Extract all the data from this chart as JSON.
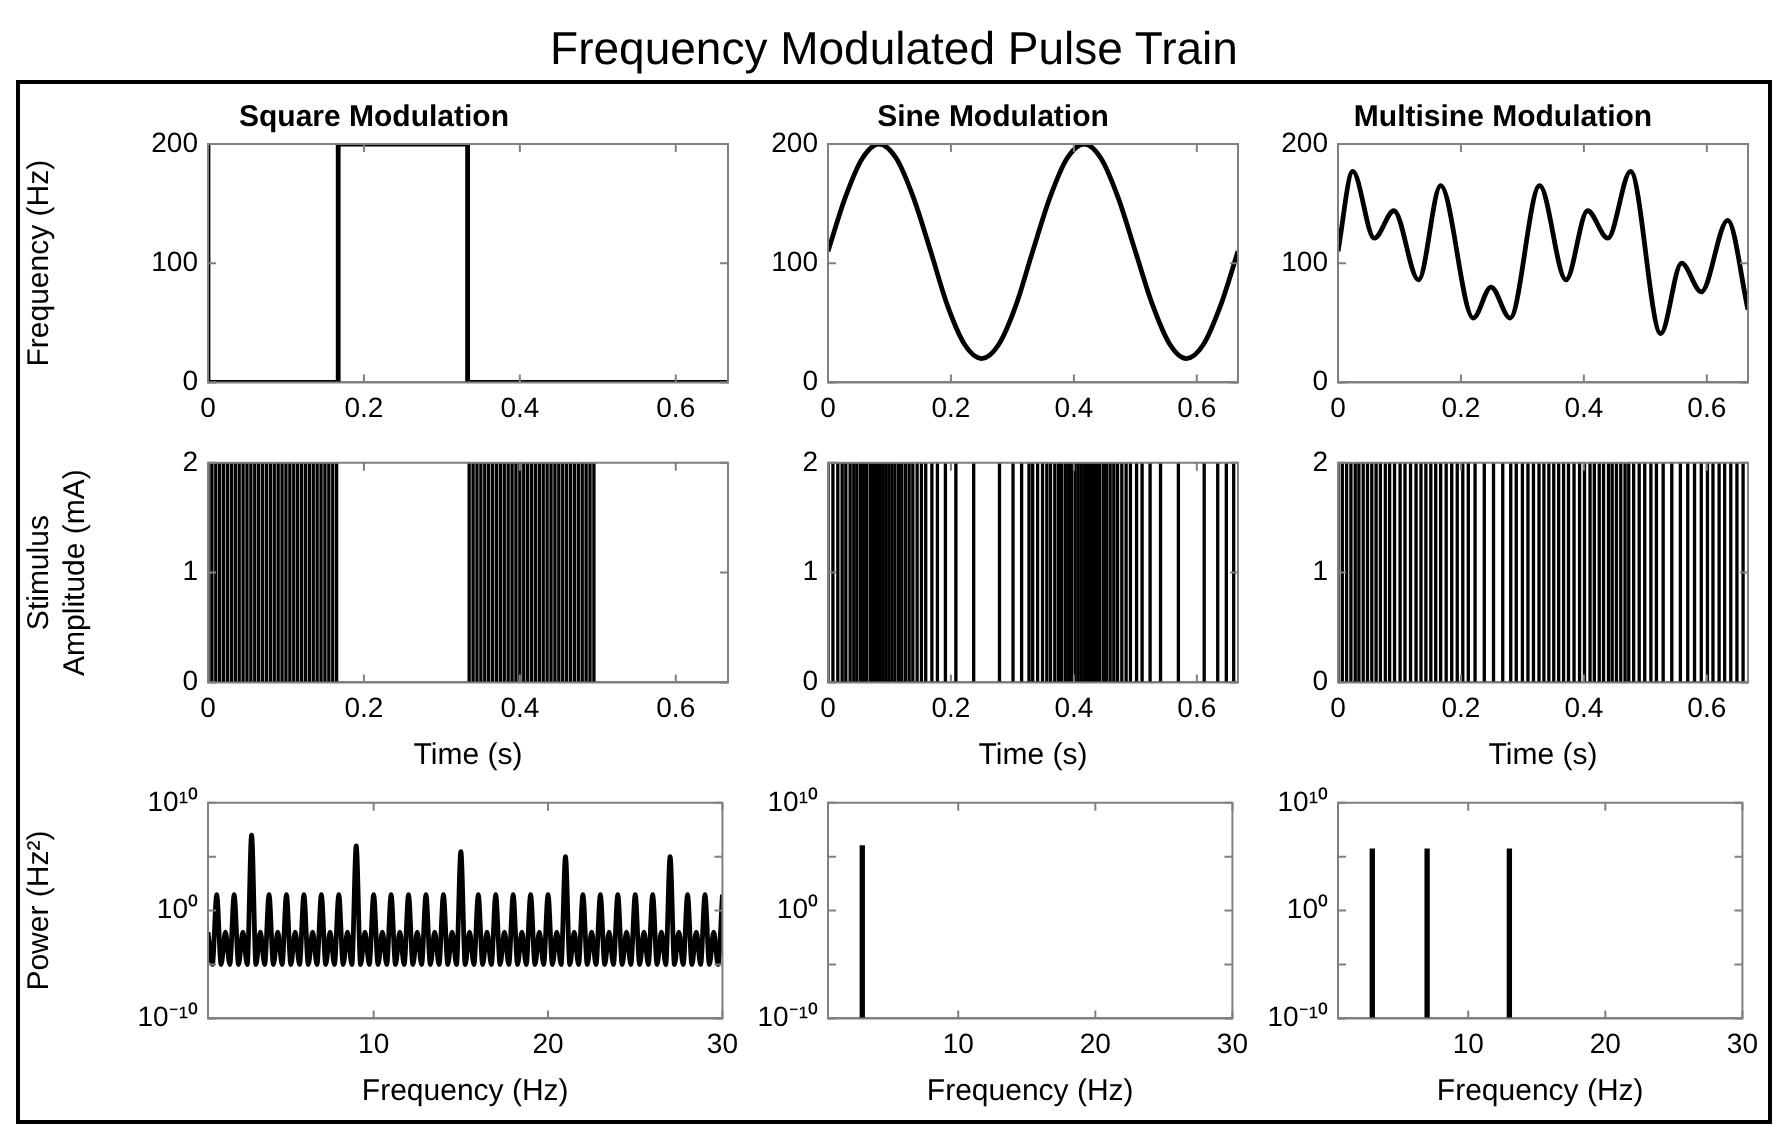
{
  "chart_data": [
    {
      "type": "step",
      "title": "Square Modulation",
      "ylabel": "Frequency (Hz)",
      "annotations": [
        "Frequency Modulated Pulse Train"
      ],
      "xlim": [
        0,
        0.667
      ],
      "xticks": [
        0,
        0.2,
        0.4,
        0.6
      ],
      "ylim": [
        0,
        200
      ],
      "yticks": [
        0,
        100,
        200
      ],
      "grid": false,
      "marker": "none",
      "series": [
        {
          "color": "#000000",
          "x": [
            0,
            0.167,
            0.333,
            0.5,
            0.667
          ],
          "values": [
            200,
            0,
            200,
            0,
            0
          ]
        }
      ]
    },
    {
      "type": "line",
      "title": "Sine Modulation",
      "xlim": [
        0,
        0.667
      ],
      "xticks": [
        0,
        0.2,
        0.4,
        0.6
      ],
      "ylim": [
        0,
        200
      ],
      "yticks": [
        0,
        100,
        200
      ],
      "grid": false,
      "marker": "none",
      "series": [
        {
          "color": "#000000",
          "x": [
            0,
            0.028,
            0.056,
            0.083,
            0.111,
            0.139,
            0.167,
            0.194,
            0.222,
            0.25,
            0.278,
            0.306,
            0.333,
            0.361,
            0.389,
            0.417,
            0.444,
            0.472,
            0.5,
            0.528,
            0.556,
            0.583,
            0.611,
            0.639,
            0.667
          ],
          "values": [
            110,
            155,
            188,
            200,
            188,
            155,
            110,
            65,
            32,
            20,
            32,
            65,
            110,
            155,
            188,
            200,
            188,
            155,
            110,
            65,
            32,
            20,
            32,
            65,
            110
          ]
        }
      ]
    },
    {
      "type": "line",
      "title": "Multisine Modulation",
      "xlim": [
        0,
        0.667
      ],
      "xticks": [
        0,
        0.2,
        0.4,
        0.6
      ],
      "ylim": [
        0,
        200
      ],
      "yticks": [
        0,
        100,
        200
      ],
      "grid": false,
      "marker": "none",
      "series": [
        {
          "color": "#000000",
          "x": [
            0,
            0.024,
            0.059,
            0.091,
            0.131,
            0.167,
            0.22,
            0.249,
            0.28,
            0.328,
            0.371,
            0.406,
            0.439,
            0.476,
            0.525,
            0.559,
            0.591,
            0.634,
            0.667
          ],
          "values": [
            110,
            177,
            121,
            144,
            86,
            165,
            54,
            80,
            54,
            165,
            86,
            144,
            121,
            177,
            41,
            100,
            76,
            136,
            61
          ]
        }
      ]
    },
    {
      "type": "bar",
      "ylabel": "Stimulus\nAmplitude (mA)",
      "xlabel": "Time (s)",
      "xlim": [
        0,
        0.667
      ],
      "xticks": [
        0,
        0.2,
        0.4,
        0.6
      ],
      "ylim": [
        0,
        2
      ],
      "yticks": [
        0,
        1,
        2
      ],
      "grid": false,
      "series": [
        {
          "color": "#000000",
          "x": [
            0,
            0.005,
            0.01,
            0.015,
            0.02,
            0.025,
            0.03,
            0.035,
            0.04,
            0.045,
            0.05,
            0.055,
            0.06,
            0.065,
            0.07,
            0.075,
            0.08,
            0.085,
            0.09,
            0.095,
            0.1,
            0.105,
            0.11,
            0.115,
            0.12,
            0.125,
            0.13,
            0.135,
            0.14,
            0.145,
            0.15,
            0.155,
            0.16,
            0.165,
            0.335,
            0.34,
            0.345,
            0.35,
            0.355,
            0.36,
            0.365,
            0.37,
            0.375,
            0.38,
            0.385,
            0.39,
            0.395,
            0.4,
            0.405,
            0.41,
            0.415,
            0.42,
            0.425,
            0.43,
            0.435,
            0.44,
            0.445,
            0.45,
            0.455,
            0.46,
            0.465,
            0.47,
            0.475,
            0.48,
            0.485,
            0.49,
            0.495
          ],
          "values": [
            2,
            2,
            2,
            2,
            2,
            2,
            2,
            2,
            2,
            2,
            2,
            2,
            2,
            2,
            2,
            2,
            2,
            2,
            2,
            2,
            2,
            2,
            2,
            2,
            2,
            2,
            2,
            2,
            2,
            2,
            2,
            2,
            2,
            2,
            2,
            2,
            2,
            2,
            2,
            2,
            2,
            2,
            2,
            2,
            2,
            2,
            2,
            2,
            2,
            2,
            2,
            2,
            2,
            2,
            2,
            2,
            2,
            2,
            2,
            2,
            2,
            2,
            2,
            2,
            2,
            2,
            2
          ]
        }
      ]
    },
    {
      "type": "bar",
      "xlabel": "Time (s)",
      "xlim": [
        0,
        0.667
      ],
      "xticks": [
        0,
        0.2,
        0.4,
        0.6
      ],
      "ylim": [
        0,
        2
      ],
      "yticks": [
        0,
        1,
        2
      ],
      "grid": false,
      "series": [
        {
          "color": "#000000",
          "x": [
            0,
            0.008,
            0.016,
            0.023,
            0.029,
            0.036,
            0.042,
            0.047,
            0.053,
            0.058,
            0.063,
            0.069,
            0.074,
            0.079,
            0.084,
            0.089,
            0.094,
            0.099,
            0.104,
            0.109,
            0.115,
            0.12,
            0.126,
            0.132,
            0.138,
            0.145,
            0.152,
            0.159,
            0.169,
            0.178,
            0.191,
            0.208,
            0.237,
            0.279,
            0.301,
            0.315,
            0.327,
            0.333,
            0.341,
            0.349,
            0.356,
            0.362,
            0.369,
            0.375,
            0.38,
            0.386,
            0.391,
            0.396,
            0.402,
            0.407,
            0.412,
            0.417,
            0.422,
            0.427,
            0.432,
            0.437,
            0.442,
            0.448,
            0.453,
            0.459,
            0.465,
            0.471,
            0.478,
            0.485,
            0.492,
            0.502,
            0.511,
            0.524,
            0.541,
            0.57,
            0.612,
            0.634,
            0.648,
            0.66
          ],
          "values": [
            2,
            2,
            2,
            2,
            2,
            2,
            2,
            2,
            2,
            2,
            2,
            2,
            2,
            2,
            2,
            2,
            2,
            2,
            2,
            2,
            2,
            2,
            2,
            2,
            2,
            2,
            2,
            2,
            2,
            2,
            2,
            2,
            2,
            2,
            2,
            2,
            2,
            2,
            2,
            2,
            2,
            2,
            2,
            2,
            2,
            2,
            2,
            2,
            2,
            2,
            2,
            2,
            2,
            2,
            2,
            2,
            2,
            2,
            2,
            2,
            2,
            2,
            2,
            2,
            2,
            2,
            2,
            2,
            2,
            2,
            2,
            2,
            2,
            2
          ]
        }
      ]
    },
    {
      "type": "bar",
      "xlabel": "Time (s)",
      "xlim": [
        0,
        0.667
      ],
      "xticks": [
        0,
        0.2,
        0.4,
        0.6
      ],
      "ylim": [
        0,
        2
      ],
      "yticks": [
        0,
        1,
        2
      ],
      "grid": false,
      "series": [
        {
          "color": "#000000",
          "x": [
            0,
            0.007,
            0.014,
            0.021,
            0.028,
            0.034,
            0.041,
            0.048,
            0.055,
            0.062,
            0.069,
            0.077,
            0.084,
            0.092,
            0.101,
            0.109,
            0.118,
            0.127,
            0.135,
            0.143,
            0.151,
            0.159,
            0.167,
            0.176,
            0.185,
            0.194,
            0.203,
            0.212,
            0.223,
            0.238,
            0.253,
            0.268,
            0.281,
            0.29,
            0.3,
            0.309,
            0.318,
            0.327,
            0.335,
            0.343,
            0.351,
            0.359,
            0.367,
            0.375,
            0.384,
            0.393,
            0.401,
            0.41,
            0.417,
            0.425,
            0.432,
            0.44,
            0.446,
            0.453,
            0.46,
            0.467,
            0.473,
            0.481,
            0.49,
            0.499,
            0.509,
            0.518,
            0.529,
            0.543,
            0.557,
            0.569,
            0.58,
            0.591,
            0.601,
            0.61,
            0.62,
            0.629,
            0.639,
            0.649,
            0.659
          ],
          "values": [
            2,
            2,
            2,
            2,
            2,
            2,
            2,
            2,
            2,
            2,
            2,
            2,
            2,
            2,
            2,
            2,
            2,
            2,
            2,
            2,
            2,
            2,
            2,
            2,
            2,
            2,
            2,
            2,
            2,
            2,
            2,
            2,
            2,
            2,
            2,
            2,
            2,
            2,
            2,
            2,
            2,
            2,
            2,
            2,
            2,
            2,
            2,
            2,
            2,
            2,
            2,
            2,
            2,
            2,
            2,
            2,
            2,
            2,
            2,
            2,
            2,
            2,
            2,
            2,
            2,
            2,
            2,
            2,
            2,
            2,
            2,
            2,
            2,
            2,
            2
          ]
        }
      ]
    },
    {
      "type": "line",
      "ylabel": "Power (Hz²)",
      "xlabel": "Frequency (Hz)",
      "log": "y",
      "xlim": [
        0.5,
        30
      ],
      "xticks": [
        10,
        20,
        30
      ],
      "ylim": [
        1e-10,
        10000000000.0
      ],
      "yticks": [
        {
          "value": 1e-10,
          "label": "10⁻¹⁰"
        },
        {
          "value": 1e-05,
          "label": null
        },
        {
          "value": 1,
          "label": "10⁰"
        },
        {
          "value": 100000.0,
          "label": null
        },
        {
          "value": 10000000000.0,
          "label": "10¹⁰"
        }
      ],
      "grid": false,
      "marker": "none",
      "series": [
        {
          "color": "#000000",
          "x": [
            0.5,
            0.75,
            1,
            1.25,
            1.5,
            1.75,
            2,
            2.25,
            2.5,
            2.75,
            3,
            3.25,
            3.5,
            3.75,
            4,
            4.25,
            4.5,
            4.75,
            5,
            5.25,
            5.5,
            5.75,
            6,
            6.25,
            6.5,
            6.75,
            7,
            7.25,
            7.5,
            7.75,
            8,
            8.25,
            8.5,
            8.75,
            9,
            9.25,
            9.5,
            9.75,
            10,
            10.25,
            10.5,
            10.75,
            11,
            11.25,
            11.5,
            11.75,
            12,
            12.25,
            12.5,
            12.75,
            13,
            13.25,
            13.5,
            13.75,
            14,
            14.25,
            14.5,
            14.75,
            15,
            15.25,
            15.5,
            15.75,
            16,
            16.25,
            16.5,
            16.75,
            17,
            17.25,
            17.5,
            17.75,
            18,
            18.25,
            18.5,
            18.75,
            19,
            19.25,
            19.5,
            19.75,
            20,
            20.25,
            20.5,
            20.75,
            21,
            21.25,
            21.5,
            21.75,
            22,
            22.25,
            22.5,
            22.75,
            23,
            23.25,
            23.5,
            23.75,
            24,
            24.25,
            24.5,
            24.75,
            25,
            25.25,
            25.5,
            25.75,
            26,
            26.25,
            26.5,
            26.75,
            27,
            27.25,
            27.5,
            27.75,
            28,
            28.25,
            28.5,
            28.75,
            29,
            29.25,
            29.5,
            29.75,
            30
          ],
          "values": [
            0.01,
            1e-05,
            30,
            1e-05,
            0.01,
            1e-05,
            30,
            1e-05,
            0.01,
            1e-05,
            10000000.0,
            1e-05,
            0.01,
            1e-05,
            30,
            1e-05,
            0.01,
            1e-05,
            30,
            1e-05,
            0.01,
            1e-05,
            30,
            1e-05,
            0.01,
            1e-05,
            30,
            1e-05,
            0.01,
            1e-05,
            30,
            1e-05,
            0.01,
            1e-05,
            1000000.0,
            1e-05,
            0.01,
            1e-05,
            30,
            1e-05,
            0.01,
            1e-05,
            30,
            1e-05,
            0.01,
            1e-05,
            30,
            1e-05,
            0.01,
            1e-05,
            30,
            1e-05,
            0.01,
            1e-05,
            30,
            1e-05,
            0.01,
            1e-05,
            300000.0,
            1e-05,
            0.01,
            1e-05,
            30,
            1e-05,
            0.01,
            1e-05,
            30,
            1e-05,
            0.01,
            1e-05,
            30,
            1e-05,
            0.01,
            1e-05,
            30,
            1e-05,
            0.01,
            1e-05,
            30,
            1e-05,
            0.01,
            1e-05,
            100000.0,
            1e-05,
            0.01,
            1e-05,
            30,
            1e-05,
            0.01,
            1e-05,
            30,
            1e-05,
            0.01,
            1e-05,
            30,
            1e-05,
            0.01,
            1e-05,
            30,
            1e-05,
            0.01,
            1e-05,
            30,
            1e-05,
            0.01,
            1e-05,
            100000.0,
            1e-05,
            0.01,
            1e-05,
            30,
            1e-05,
            0.01,
            1e-05,
            30,
            1e-05,
            0.01,
            1e-05,
            30
          ]
        }
      ]
    },
    {
      "type": "bar",
      "xlabel": "Frequency (Hz)",
      "log": "y",
      "xlim": [
        0.5,
        30
      ],
      "xticks": [
        10,
        20,
        30
      ],
      "ylim": [
        1e-10,
        10000000000.0
      ],
      "yticks": [
        {
          "value": 1e-10,
          "label": "10⁻¹⁰"
        },
        {
          "value": 1e-05,
          "label": null
        },
        {
          "value": 1,
          "label": "10⁰"
        },
        {
          "value": 100000.0,
          "label": null
        },
        {
          "value": 10000000000.0,
          "label": "10¹⁰"
        }
      ],
      "grid": false,
      "series": [
        {
          "color": "#000000",
          "x": [
            3
          ],
          "values": [
            1000000.0
          ]
        }
      ]
    },
    {
      "type": "bar",
      "xlabel": "Frequency (Hz)",
      "log": "y",
      "xlim": [
        0.5,
        30
      ],
      "xticks": [
        10,
        20,
        30
      ],
      "ylim": [
        1e-10,
        10000000000.0
      ],
      "yticks": [
        {
          "value": 1e-10,
          "label": "10⁻¹⁰"
        },
        {
          "value": 1e-05,
          "label": null
        },
        {
          "value": 1,
          "label": "10⁰"
        },
        {
          "value": 100000.0,
          "label": null
        },
        {
          "value": 10000000000.0,
          "label": "10¹⁰"
        }
      ],
      "grid": false,
      "series": [
        {
          "color": "#000000",
          "x": [
            3,
            7,
            13
          ],
          "values": [
            500000.0,
            500000.0,
            500000.0
          ]
        }
      ]
    }
  ]
}
